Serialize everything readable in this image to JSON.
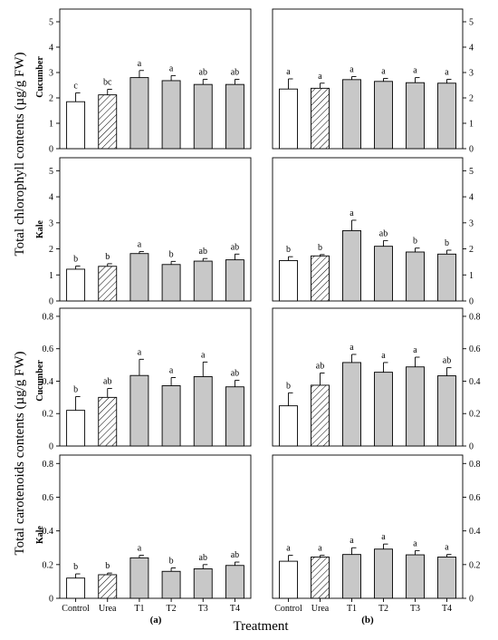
{
  "figure": {
    "ylabel_chlorophyll": "Total chlorophyll contents (µg/g FW)",
    "ylabel_carotenoids": "Total carotenoids contents (µg/g FW)",
    "xlabel": "Treatment",
    "panel_labels": [
      "(a)",
      "(b)"
    ],
    "crop_labels": [
      "Cucumber",
      "Kale",
      "Cucumber",
      "Kale"
    ]
  },
  "colors": {
    "control": "#ffffff",
    "urea": "hatched",
    "treatments": "#c8c8c8",
    "edge": "#000000"
  },
  "chart_data": [
    {
      "type": "bar",
      "panel": "(a)",
      "crop": "Cucumber",
      "measure": "Total chlorophyll contents (µg/g FW)",
      "categories": [
        "Control",
        "Urea",
        "T1",
        "T2",
        "T3",
        "T4"
      ],
      "values": [
        1.85,
        2.12,
        2.8,
        2.68,
        2.53,
        2.53
      ],
      "errors": [
        0.35,
        0.22,
        0.28,
        0.2,
        0.2,
        0.2
      ],
      "significance": [
        "c",
        "bc",
        "a",
        "a",
        "ab",
        "ab"
      ],
      "ylim": [
        0,
        5.5
      ],
      "yticks": [
        0,
        1,
        2,
        3,
        4,
        5
      ]
    },
    {
      "type": "bar",
      "panel": "(b)",
      "crop": "Cucumber",
      "measure": "Total chlorophyll contents (µg/g FW)",
      "categories": [
        "Control",
        "Urea",
        "T1",
        "T2",
        "T3",
        "T4"
      ],
      "values": [
        2.35,
        2.38,
        2.72,
        2.65,
        2.6,
        2.58
      ],
      "errors": [
        0.4,
        0.2,
        0.12,
        0.12,
        0.2,
        0.15
      ],
      "significance": [
        "a",
        "a",
        "a",
        "a",
        "a",
        "a"
      ],
      "ylim": [
        0,
        5.5
      ],
      "yticks": [
        0,
        1,
        2,
        3,
        4,
        5
      ]
    },
    {
      "type": "bar",
      "panel": "(a)",
      "crop": "Kale",
      "measure": "Total chlorophyll contents (µg/g FW)",
      "categories": [
        "Control",
        "Urea",
        "T1",
        "T2",
        "T3",
        "T4"
      ],
      "values": [
        1.22,
        1.33,
        1.82,
        1.4,
        1.53,
        1.58
      ],
      "errors": [
        0.12,
        0.1,
        0.08,
        0.12,
        0.1,
        0.22
      ],
      "significance": [
        "b",
        "b",
        "a",
        "b",
        "ab",
        "ab"
      ],
      "ylim": [
        0,
        5.5
      ],
      "yticks": [
        0,
        1,
        2,
        3,
        4,
        5
      ]
    },
    {
      "type": "bar",
      "panel": "(b)",
      "crop": "Kale",
      "measure": "Total chlorophyll contents (µg/g FW)",
      "categories": [
        "Control",
        "Urea",
        "T1",
        "T2",
        "T3",
        "T4"
      ],
      "values": [
        1.55,
        1.73,
        2.7,
        2.1,
        1.88,
        1.8
      ],
      "errors": [
        0.15,
        0.05,
        0.4,
        0.22,
        0.15,
        0.15
      ],
      "significance": [
        "b",
        "b",
        "a",
        "ab",
        "b",
        "b"
      ],
      "ylim": [
        0,
        5.5
      ],
      "yticks": [
        0,
        1,
        2,
        3,
        4,
        5
      ]
    },
    {
      "type": "bar",
      "panel": "(a)",
      "crop": "Cucumber",
      "measure": "Total carotenoids contents (µg/g FW)",
      "categories": [
        "Control",
        "Urea",
        "T1",
        "T2",
        "T3",
        "T4"
      ],
      "values": [
        0.22,
        0.3,
        0.435,
        0.372,
        0.428,
        0.365
      ],
      "errors": [
        0.085,
        0.055,
        0.1,
        0.05,
        0.09,
        0.04
      ],
      "significance": [
        "b",
        "ab",
        "a",
        "a",
        "a",
        "ab"
      ],
      "ylim": [
        0,
        0.85
      ],
      "yticks": [
        0,
        0.2,
        0.4,
        0.6,
        0.8
      ]
    },
    {
      "type": "bar",
      "panel": "(b)",
      "crop": "Cucumber",
      "measure": "Total carotenoids contents (µg/g FW)",
      "categories": [
        "Control",
        "Urea",
        "T1",
        "T2",
        "T3",
        "T4"
      ],
      "values": [
        0.248,
        0.375,
        0.515,
        0.455,
        0.488,
        0.433
      ],
      "errors": [
        0.08,
        0.075,
        0.05,
        0.06,
        0.06,
        0.05
      ],
      "significance": [
        "b",
        "ab",
        "a",
        "a",
        "a",
        "ab"
      ],
      "ylim": [
        0,
        0.85
      ],
      "yticks": [
        0,
        0.2,
        0.4,
        0.6,
        0.8
      ]
    },
    {
      "type": "bar",
      "panel": "(a)",
      "crop": "Kale",
      "measure": "Total carotenoids contents (µg/g FW)",
      "categories": [
        "Control",
        "Urea",
        "T1",
        "T2",
        "T3",
        "T4"
      ],
      "values": [
        0.12,
        0.14,
        0.24,
        0.16,
        0.175,
        0.195
      ],
      "errors": [
        0.025,
        0.01,
        0.015,
        0.02,
        0.025,
        0.02
      ],
      "significance": [
        "b",
        "b",
        "a",
        "b",
        "ab",
        "ab"
      ],
      "ylim": [
        0,
        0.85
      ],
      "yticks": [
        0,
        0.2,
        0.4,
        0.6,
        0.8
      ]
    },
    {
      "type": "bar",
      "panel": "(b)",
      "crop": "Kale",
      "measure": "Total carotenoids contents (µg/g FW)",
      "categories": [
        "Control",
        "Urea",
        "T1",
        "T2",
        "T3",
        "T4"
      ],
      "values": [
        0.22,
        0.245,
        0.26,
        0.292,
        0.258,
        0.245
      ],
      "errors": [
        0.035,
        0.01,
        0.04,
        0.03,
        0.025,
        0.015
      ],
      "significance": [
        "a",
        "a",
        "a",
        "a",
        "a",
        "a"
      ],
      "ylim": [
        0,
        0.85
      ],
      "yticks": [
        0,
        0.2,
        0.4,
        0.6,
        0.8
      ]
    }
  ]
}
